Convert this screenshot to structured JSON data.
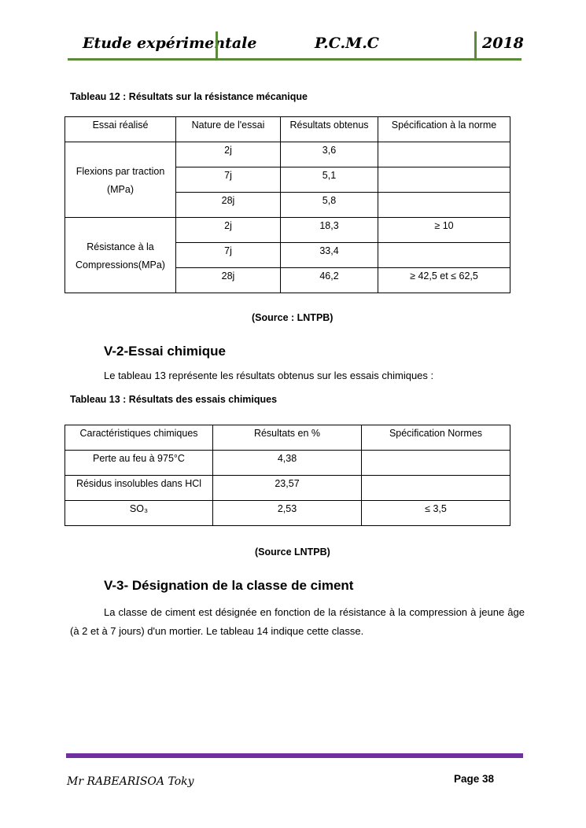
{
  "header": {
    "left": "Etude expérimentale",
    "center": "P.C.M.C",
    "right": "2018"
  },
  "table12": {
    "caption": "Tableau 12 : Résultats sur la résistance mécanique",
    "headers": [
      "Essai réalisé",
      "Nature de l'essai",
      "Résultats obtenus",
      "Spécification à la norme"
    ],
    "groups": [
      {
        "label": "Flexions par traction (MPa)",
        "rows": [
          [
            "2j",
            "3,6",
            ""
          ],
          [
            "7j",
            "5,1",
            ""
          ],
          [
            "28j",
            "5,8",
            ""
          ]
        ]
      },
      {
        "label": "Résistance à la Compressions(MPa)",
        "rows": [
          [
            "2j",
            "18,3",
            "≥ 10"
          ],
          [
            "7j",
            "33,4",
            ""
          ],
          [
            "28j",
            "46,2",
            "≥ 42,5 et ≤ 62,5"
          ]
        ]
      }
    ],
    "source": "(Source : LNTPB)"
  },
  "section2": {
    "title": "V-2-Essai chimique",
    "text": "Le tableau 13 représente les résultats obtenus sur les essais chimiques :"
  },
  "table13": {
    "caption": "Tableau 13 : Résultats des essais chimiques",
    "headers": [
      "Caractéristiques chimiques",
      "Résultats en %",
      "Spécification Normes"
    ],
    "rows": [
      [
        "Perte au feu à 975°C",
        "4,38",
        ""
      ],
      [
        "Résidus insolubles dans HCl",
        "23,57",
        ""
      ],
      [
        "SO₃",
        "2,53",
        "≤ 3,5"
      ]
    ],
    "source": "(Source LNTPB)"
  },
  "section3": {
    "title": "V-3- Désignation de la classe de ciment",
    "text": "La classe de ciment est désignée en fonction de la résistance à la compression à jeune âge (à 2 et à 7 jours) d'un mortier. Le tableau 14 indique cette classe."
  },
  "footer": {
    "author": "Mr RABEARISOA Toky",
    "page": "Page 38"
  },
  "colors": {
    "header_rule": "#5a8a3a",
    "footer_rule": "#7030a0"
  }
}
